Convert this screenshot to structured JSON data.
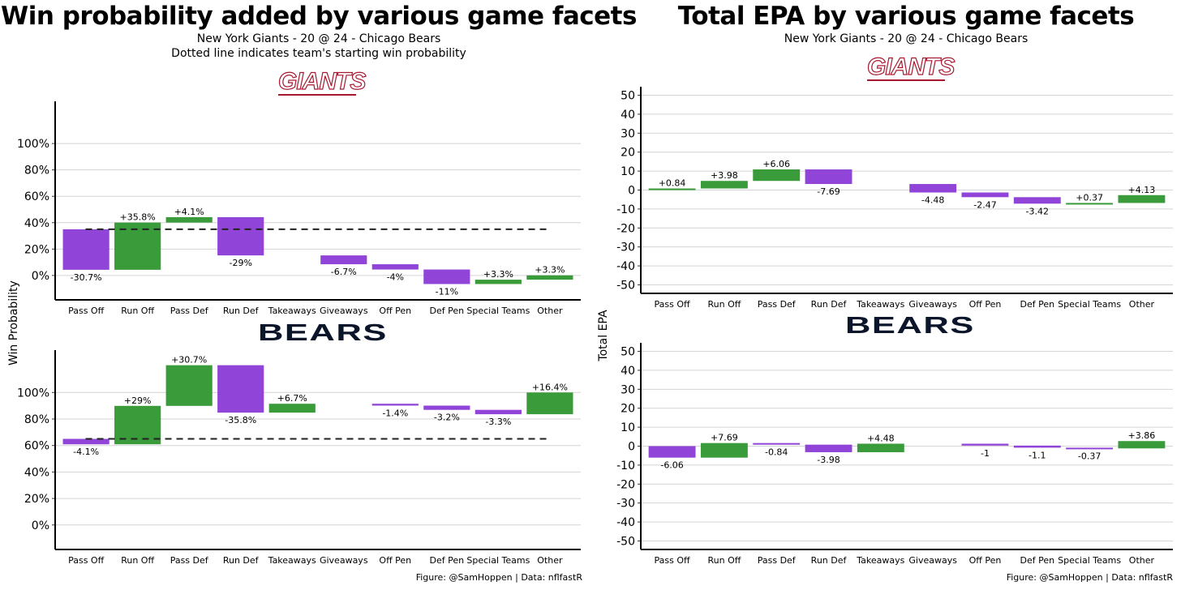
{
  "left": {
    "title": "Win probability added by various game facets",
    "subtitle1": "New York Giants - 20 @ 24 - Chicago Bears",
    "subtitle2": "Dotted line indicates team's starting win probability",
    "ylabel": "Win Probability",
    "footer": "Figure: @SamHoppen | Data: nflfastR",
    "logo_top": "GIANTS",
    "logo_bottom": "BEARS"
  },
  "right": {
    "title": "Total EPA by various game facets",
    "subtitle1": "New York Giants - 20 @ 24 - Chicago Bears",
    "ylabel": "Total EPA",
    "footer": "Figure: @SamHoppen | Data: nflfastR",
    "logo_top": "GIANTS",
    "logo_bottom": "BEARS"
  },
  "colors": {
    "positive": "#2f962f",
    "negative": "#8a3bd6",
    "grid": "#d4d4d4"
  },
  "chart_data": [
    {
      "type": "waterfall",
      "team": "New York Giants",
      "metric": "Win Probability",
      "categories": [
        "Pass Off",
        "Run Off",
        "Pass Def",
        "Run Def",
        "Takeaways",
        "Giveaways",
        "Off Pen",
        "Def Pen",
        "Special Teams",
        "Other"
      ],
      "start": 35,
      "values": [
        -30.7,
        35.8,
        4.1,
        -29,
        0,
        -6.7,
        -4,
        -11,
        3.3,
        3.3
      ],
      "labels": [
        "-30.7%",
        "+35.8%",
        "+4.1%",
        "-29%",
        "",
        "-6.7%",
        "-4%",
        "-11%",
        "+3.3%",
        "+3.3%"
      ],
      "ylim": [
        -18.5,
        132
      ],
      "ticks": [
        0,
        20,
        40,
        60,
        80,
        100
      ],
      "tick_labels": [
        "0%",
        "20%",
        "40%",
        "60%",
        "80%",
        "100%"
      ],
      "dashed_start_line": true
    },
    {
      "type": "waterfall",
      "team": "Chicago Bears",
      "metric": "Win Probability",
      "categories": [
        "Pass Off",
        "Run Off",
        "Pass Def",
        "Run Def",
        "Takeaways",
        "Giveaways",
        "Off Pen",
        "Def Pen",
        "Special Teams",
        "Other"
      ],
      "start": 65,
      "values": [
        -4.1,
        29,
        30.7,
        -35.8,
        6.7,
        0,
        -1.4,
        -3.2,
        -3.3,
        16.4
      ],
      "labels": [
        "-4.1%",
        "+29%",
        "+30.7%",
        "-35.8%",
        "+6.7%",
        "",
        "-1.4%",
        "-3.2%",
        "-3.3%",
        "+16.4%"
      ],
      "ylim": [
        -18.5,
        132
      ],
      "ticks": [
        0,
        20,
        40,
        60,
        80,
        100
      ],
      "tick_labels": [
        "0%",
        "20%",
        "40%",
        "60%",
        "80%",
        "100%"
      ],
      "dashed_start_line": true
    },
    {
      "type": "waterfall",
      "team": "New York Giants",
      "metric": "Total EPA",
      "categories": [
        "Pass Off",
        "Run Off",
        "Pass Def",
        "Run Def",
        "Takeaways",
        "Giveaways",
        "Off Pen",
        "Def Pen",
        "Special Teams",
        "Other"
      ],
      "start": 0,
      "values": [
        0.84,
        3.98,
        6.06,
        -7.69,
        0,
        -4.48,
        -2.47,
        -3.42,
        0.37,
        4.13
      ],
      "labels": [
        "+0.84",
        "+3.98",
        "+6.06",
        "-7.69",
        "",
        "-4.48",
        "-2.47",
        "-3.42",
        "+0.37",
        "+4.13"
      ],
      "ylim": [
        -54.5,
        54.5
      ],
      "ticks": [
        -50,
        -40,
        -30,
        -20,
        -10,
        0,
        10,
        20,
        30,
        40,
        50
      ],
      "tick_labels": [
        "-50",
        "-40",
        "-30",
        "-20",
        "-10",
        "0",
        "10",
        "20",
        "30",
        "40",
        "50"
      ],
      "dashed_start_line": false
    },
    {
      "type": "waterfall",
      "team": "Chicago Bears",
      "metric": "Total EPA",
      "categories": [
        "Pass Off",
        "Run Off",
        "Pass Def",
        "Run Def",
        "Takeaways",
        "Giveaways",
        "Off Pen",
        "Def Pen",
        "Special Teams",
        "Other"
      ],
      "start": 0,
      "values": [
        -6.06,
        7.69,
        -0.84,
        -3.98,
        4.48,
        0,
        -1,
        -1.1,
        -0.37,
        3.86
      ],
      "labels": [
        "-6.06",
        "+7.69",
        "-0.84",
        "-3.98",
        "+4.48",
        "",
        "-1",
        "-1.1",
        "-0.37",
        "+3.86"
      ],
      "ylim": [
        -54.5,
        54.5
      ],
      "ticks": [
        -50,
        -40,
        -30,
        -20,
        -10,
        0,
        10,
        20,
        30,
        40,
        50
      ],
      "tick_labels": [
        "-50",
        "-40",
        "-30",
        "-20",
        "-10",
        "0",
        "10",
        "20",
        "30",
        "40",
        "50"
      ],
      "dashed_start_line": false
    }
  ]
}
